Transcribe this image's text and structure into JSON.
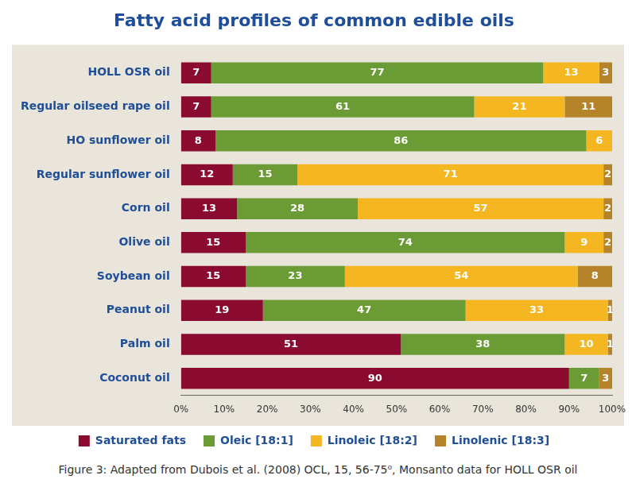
{
  "chart_data": {
    "type": "bar",
    "title": "Fatty acid profiles of common edible oils",
    "caption": "Figure 3: Adapted from Dubois et al. (2008) OCL, 15, 56-75⁰, Monsanto data for HOLL OSR oil",
    "orientation": "horizontal",
    "stacked": true,
    "data_labels": true,
    "grid": false,
    "legend": "bottom",
    "categories": [
      "HOLL OSR oil",
      "Regular oilseed rape oil",
      "HO sunflower oil",
      "Regular sunflower oil",
      "Corn oil",
      "Olive oil",
      "Soybean oil",
      "Peanut oil",
      "Palm oil",
      "Coconut oil"
    ],
    "series": [
      {
        "name": "Saturated fats",
        "color": "#8b0a30",
        "values": [
          7,
          7,
          8,
          12,
          13,
          15,
          15,
          19,
          51,
          90
        ]
      },
      {
        "name": "Oleic [18:1]",
        "color": "#6a9b34",
        "values": [
          77,
          61,
          86,
          15,
          28,
          74,
          23,
          47,
          38,
          7
        ]
      },
      {
        "name": "Linoleic [18:2]",
        "color": "#f4b722",
        "values": [
          13,
          21,
          6,
          71,
          57,
          9,
          54,
          33,
          10,
          null
        ]
      },
      {
        "name": "Linolenic [18:3]",
        "color": "#b4832a",
        "values": [
          3,
          11,
          null,
          2,
          2,
          2,
          8,
          1,
          1,
          3
        ]
      }
    ],
    "xlim": [
      0,
      100
    ],
    "xticks": [
      {
        "value": 0,
        "label": "0%"
      },
      {
        "value": 10,
        "label": "10%"
      },
      {
        "value": 20,
        "label": "20%"
      },
      {
        "value": 30,
        "label": "30%"
      },
      {
        "value": 40,
        "label": "40%"
      },
      {
        "value": 50,
        "label": "50%"
      },
      {
        "value": 60,
        "label": "60%"
      },
      {
        "value": 70,
        "label": "70%"
      },
      {
        "value": 80,
        "label": "80%"
      },
      {
        "value": 90,
        "label": "90%"
      },
      {
        "value": 100,
        "label": "100%"
      }
    ]
  }
}
